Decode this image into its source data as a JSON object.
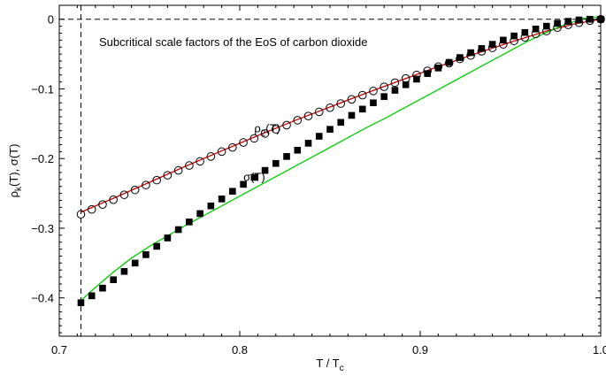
{
  "chart_data": {
    "type": "scatter",
    "title": "Subcritical scale factors of the EoS of carbon dioxide",
    "xlabel": "T / T",
    "xlabel_sub": "c",
    "ylabel": "ρ",
    "ylabel_sub": "k",
    "ylabel_rest": "(T), σ(T)",
    "xlim": [
      0.7,
      1.0
    ],
    "ylim": [
      -0.455,
      0.02
    ],
    "x_ticks": [
      0.7,
      0.8,
      0.9,
      1.0
    ],
    "x_tick_labels": [
      "0.7",
      "0.8",
      "0.9",
      "1.0"
    ],
    "y_ticks": [
      0,
      -0.1,
      -0.2,
      -0.3,
      -0.4
    ],
    "y_tick_labels": [
      "0",
      "−0.1",
      "−0.2",
      "−0.3",
      "−0.4"
    ],
    "reference_lines": {
      "y": 0,
      "x": 0.712
    },
    "annotations": [
      {
        "text": "ρ",
        "sub": "2",
        "rest": "(T)",
        "x": 0.808,
        "y": -0.162
      },
      {
        "text": "σ",
        "sub": "",
        "rest": "(T)",
        "x": 0.802,
        "y": -0.232
      }
    ],
    "series": [
      {
        "name": "ρ2(T)",
        "marker": "open-circle",
        "color": "#000000",
        "fit_color": "#cc0000",
        "x": [
          0.712,
          0.718,
          0.724,
          0.73,
          0.736,
          0.742,
          0.748,
          0.754,
          0.76,
          0.766,
          0.772,
          0.778,
          0.784,
          0.79,
          0.796,
          0.802,
          0.808,
          0.814,
          0.82,
          0.826,
          0.832,
          0.838,
          0.844,
          0.85,
          0.856,
          0.862,
          0.868,
          0.874,
          0.88,
          0.886,
          0.892,
          0.898,
          0.904,
          0.91,
          0.916,
          0.922,
          0.928,
          0.934,
          0.94,
          0.946,
          0.952,
          0.958,
          0.964,
          0.97,
          0.976,
          0.982,
          0.988,
          0.994,
          1.0
        ],
        "y": [
          -0.28,
          -0.273,
          -0.266,
          -0.259,
          -0.252,
          -0.245,
          -0.238,
          -0.231,
          -0.224,
          -0.217,
          -0.21,
          -0.204,
          -0.197,
          -0.19,
          -0.184,
          -0.177,
          -0.171,
          -0.164,
          -0.158,
          -0.152,
          -0.145,
          -0.139,
          -0.133,
          -0.127,
          -0.121,
          -0.115,
          -0.109,
          -0.103,
          -0.097,
          -0.091,
          -0.085,
          -0.08,
          -0.074,
          -0.068,
          -0.063,
          -0.057,
          -0.052,
          -0.046,
          -0.041,
          -0.036,
          -0.031,
          -0.026,
          -0.021,
          -0.017,
          -0.012,
          -0.008,
          -0.005,
          -0.002,
          0.0
        ]
      },
      {
        "name": "σ(T)",
        "marker": "filled-square",
        "color": "#000000",
        "fit_color": "#00cc00",
        "x": [
          0.712,
          0.718,
          0.724,
          0.73,
          0.736,
          0.742,
          0.748,
          0.754,
          0.76,
          0.766,
          0.772,
          0.778,
          0.784,
          0.79,
          0.796,
          0.802,
          0.808,
          0.814,
          0.82,
          0.826,
          0.832,
          0.838,
          0.844,
          0.85,
          0.856,
          0.862,
          0.868,
          0.874,
          0.88,
          0.886,
          0.892,
          0.898,
          0.904,
          0.91,
          0.916,
          0.922,
          0.928,
          0.934,
          0.94,
          0.946,
          0.952,
          0.958,
          0.964,
          0.97,
          0.976,
          0.982,
          0.988,
          0.994,
          1.0
        ],
        "y": [
          -0.407,
          -0.397,
          -0.386,
          -0.374,
          -0.362,
          -0.35,
          -0.338,
          -0.326,
          -0.314,
          -0.302,
          -0.291,
          -0.279,
          -0.268,
          -0.258,
          -0.247,
          -0.237,
          -0.227,
          -0.217,
          -0.207,
          -0.197,
          -0.188,
          -0.178,
          -0.168,
          -0.158,
          -0.148,
          -0.138,
          -0.129,
          -0.12,
          -0.111,
          -0.102,
          -0.094,
          -0.086,
          -0.078,
          -0.07,
          -0.062,
          -0.055,
          -0.048,
          -0.042,
          -0.036,
          -0.03,
          -0.024,
          -0.019,
          -0.014,
          -0.01,
          -0.006,
          -0.003,
          -0.001,
          0.0,
          0.0
        ]
      }
    ],
    "fit_curves": [
      {
        "color": "#cc0000",
        "x": [
          0.712,
          0.73,
          0.75,
          0.77,
          0.79,
          0.81,
          0.83,
          0.85,
          0.87,
          0.89,
          0.91,
          0.93,
          0.95,
          0.97,
          0.985,
          1.0
        ],
        "y": [
          -0.277,
          -0.257,
          -0.234,
          -0.211,
          -0.189,
          -0.167,
          -0.146,
          -0.126,
          -0.106,
          -0.087,
          -0.068,
          -0.05,
          -0.033,
          -0.017,
          -0.007,
          0.0
        ]
      },
      {
        "color": "#00cc00",
        "x": [
          0.712,
          0.72,
          0.73,
          0.74,
          0.75,
          0.76,
          0.77,
          0.78,
          0.79,
          0.8,
          0.81,
          0.82,
          0.83,
          0.84,
          0.85,
          0.86,
          0.87,
          0.88,
          0.89,
          0.9,
          0.91,
          0.92,
          0.93,
          0.94,
          0.95,
          0.96,
          0.97,
          0.98,
          0.99,
          0.995,
          1.0
        ],
        "y": [
          -0.404,
          -0.385,
          -0.363,
          -0.343,
          -0.326,
          -0.311,
          -0.296,
          -0.282,
          -0.268,
          -0.254,
          -0.24,
          -0.226,
          -0.212,
          -0.198,
          -0.184,
          -0.17,
          -0.156,
          -0.143,
          -0.129,
          -0.115,
          -0.101,
          -0.087,
          -0.073,
          -0.059,
          -0.045,
          -0.031,
          -0.019,
          -0.008,
          0.001,
          0.003,
          0.003
        ]
      }
    ]
  }
}
